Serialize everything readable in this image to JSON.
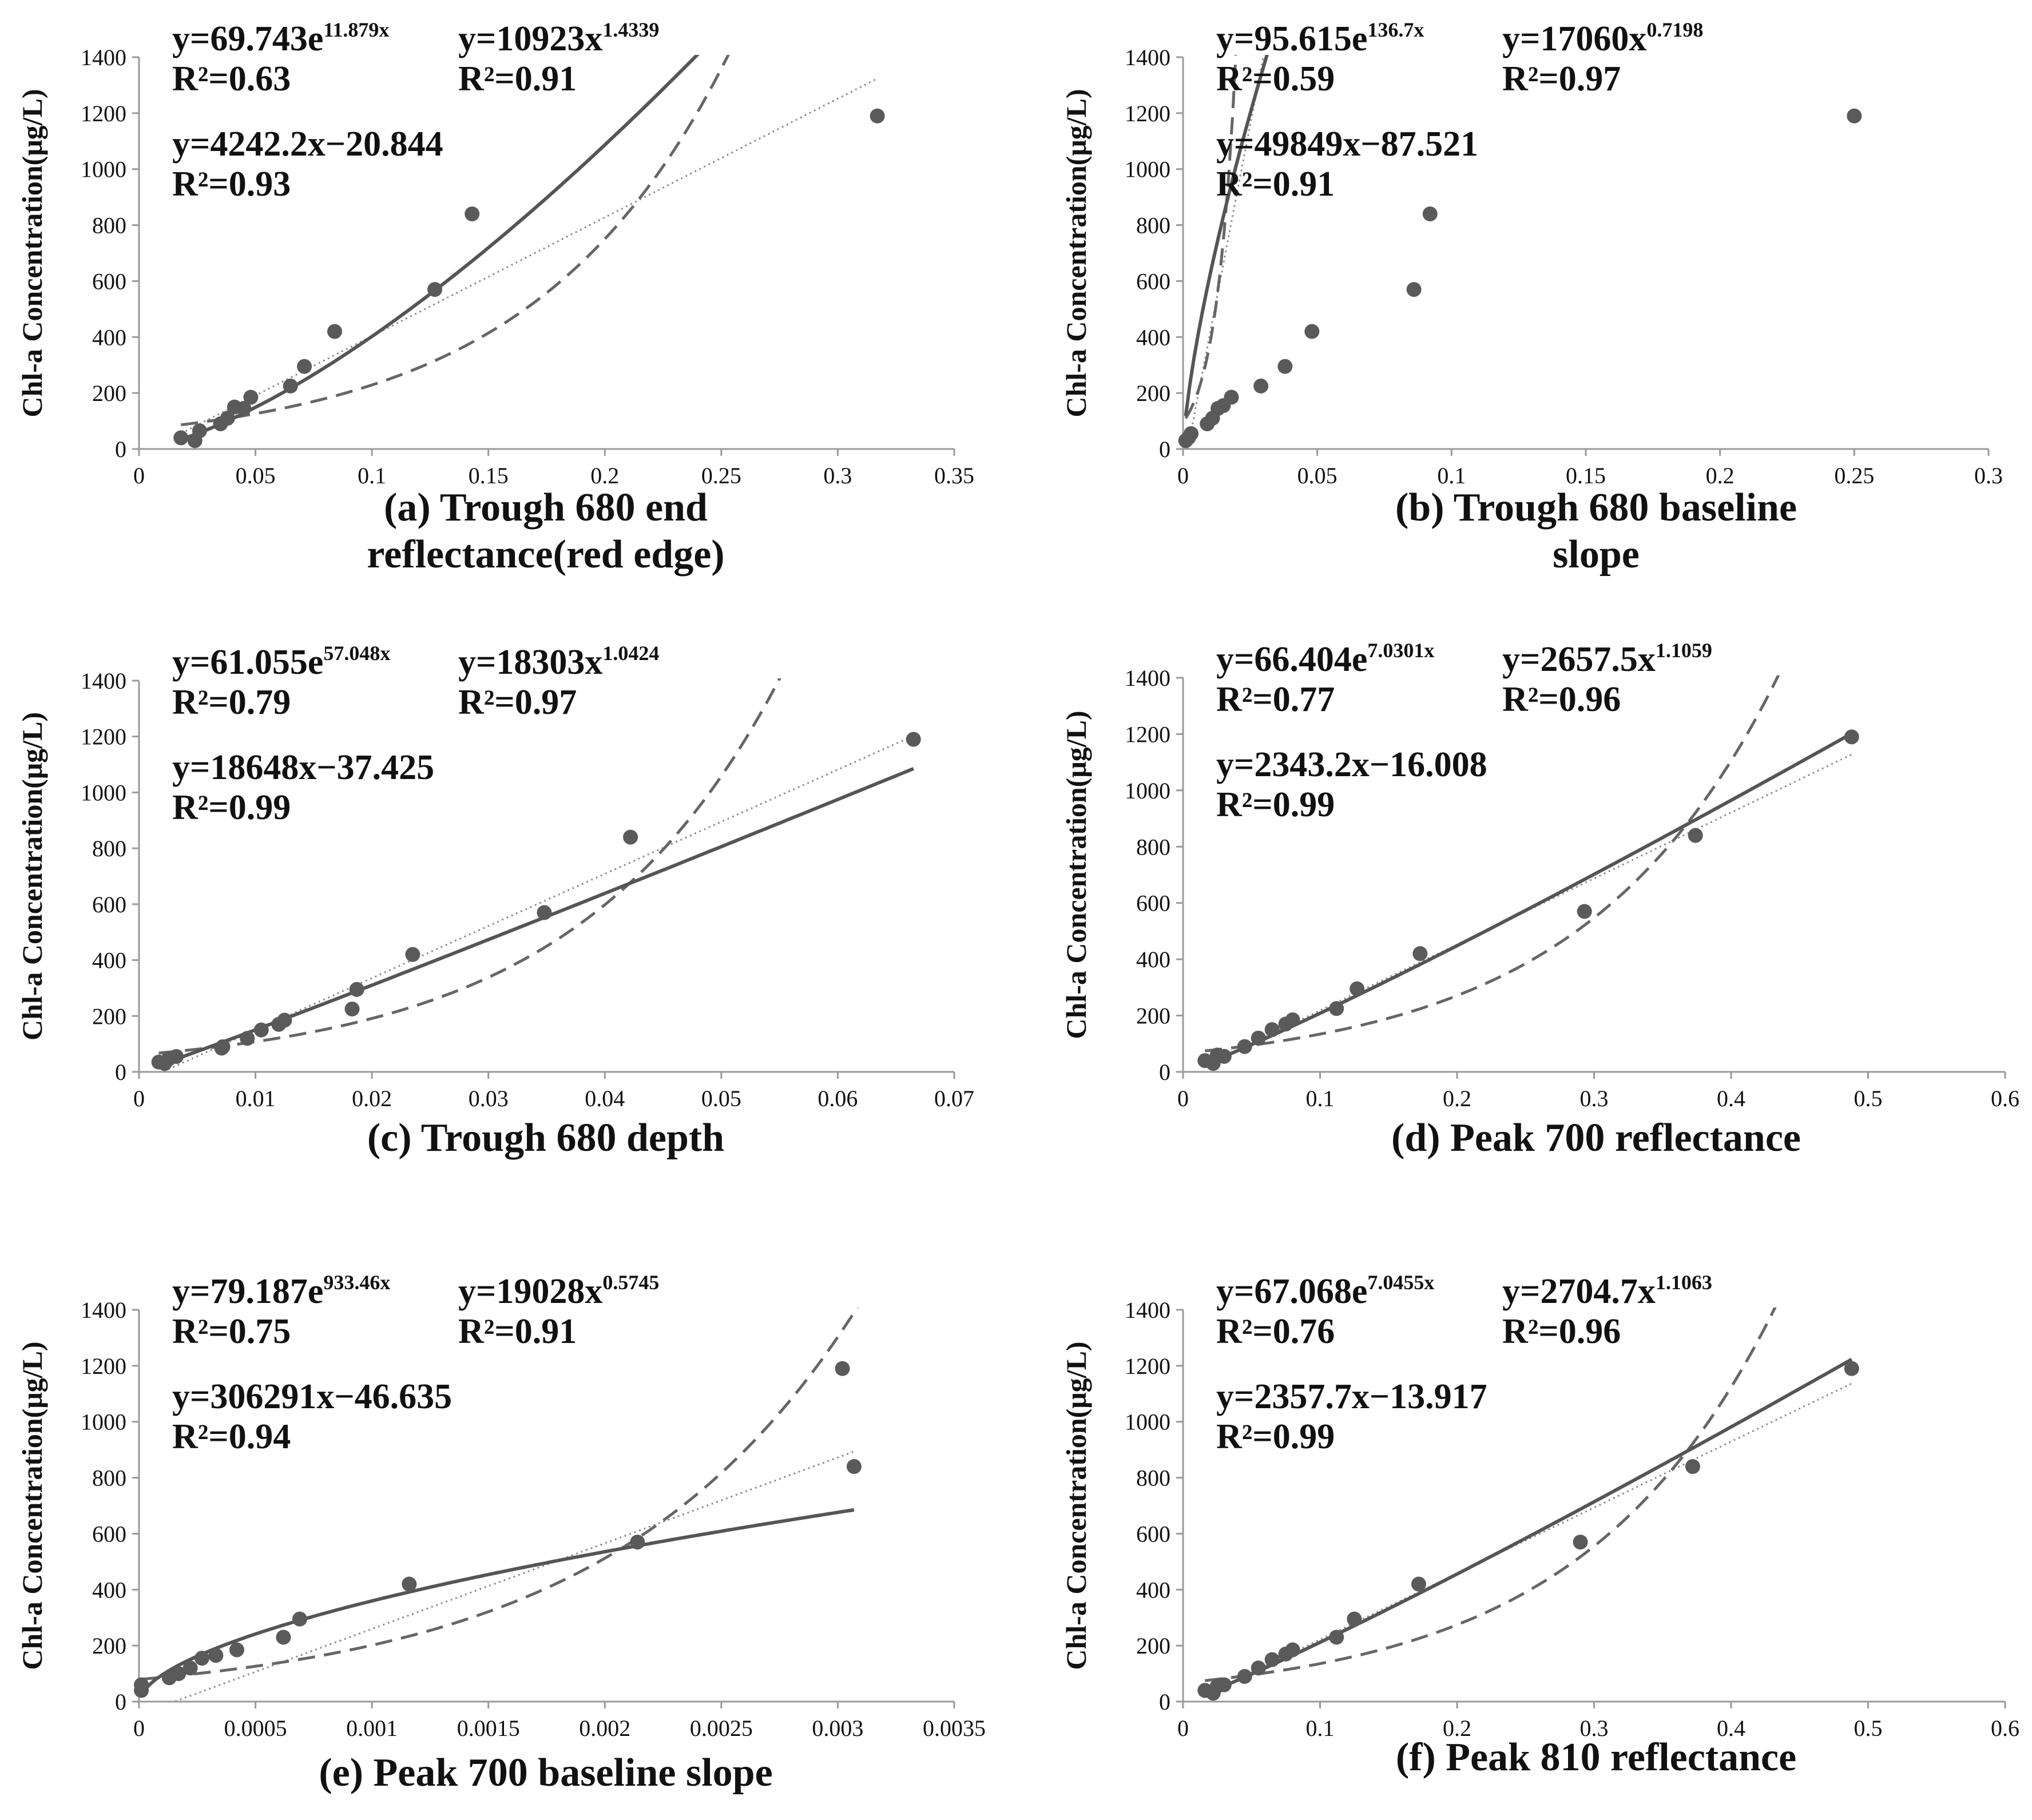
{
  "chart_data": [
    {
      "type": "scatter",
      "title": "(a) Trough 680 end reflectance(red edge)",
      "title_lines": [
        "(a) Trough 680 end",
        "reflectance(red edge)"
      ],
      "ylabel": "Chl-a Concentration(μg/L)",
      "xlim": [
        0,
        0.35
      ],
      "xticks": [
        0,
        0.05,
        0.1,
        0.15,
        0.2,
        0.25,
        0.3,
        0.35
      ],
      "xtick_labels": [
        "0",
        "0.05",
        "0.1",
        "0.15",
        "0.2",
        "0.25",
        "0.3",
        "0.35"
      ],
      "ylim": [
        0,
        1400
      ],
      "yticks": [
        0,
        200,
        400,
        600,
        800,
        1000,
        1200,
        1400
      ],
      "ytick_labels": [
        "0",
        "200",
        "400",
        "600",
        "800",
        "1000",
        "1200",
        "1400"
      ],
      "points": [
        [
          0.018,
          40
        ],
        [
          0.024,
          30
        ],
        [
          0.026,
          65
        ],
        [
          0.035,
          90
        ],
        [
          0.038,
          110
        ],
        [
          0.041,
          150
        ],
        [
          0.045,
          145
        ],
        [
          0.048,
          185
        ],
        [
          0.065,
          225
        ],
        [
          0.071,
          295
        ],
        [
          0.084,
          420
        ],
        [
          0.127,
          570
        ],
        [
          0.143,
          840
        ],
        [
          0.317,
          1190
        ]
      ],
      "fits": {
        "exponential": {
          "a": 69.743,
          "b": 11.879,
          "formula": "y=69.743e",
          "exponent": "11.879x",
          "r2": "R²=0.63"
        },
        "power": {
          "a": 10923,
          "b": 1.4339,
          "formula": "y=10923x",
          "exponent": "1.4339",
          "r2": "R²=0.91"
        },
        "linear": {
          "m": 4242.2,
          "c": -20.844,
          "formula": "y=4242.2x−20.844",
          "r2": "R²=0.93"
        }
      }
    },
    {
      "type": "scatter",
      "title": "(b) Trough 680 baseline slope",
      "title_lines": [
        "(b) Trough 680 baseline",
        "slope"
      ],
      "ylabel": "Chl-a Concentration(μg/L)",
      "xlim": [
        0,
        0.3
      ],
      "xticks": [
        0,
        0.05,
        0.1,
        0.15,
        0.2,
        0.25,
        0.3
      ],
      "xtick_labels": [
        "0",
        "0.05",
        "0.1",
        "0.15",
        "0.2",
        "0.25",
        "0.3"
      ],
      "ylim": [
        0,
        1400
      ],
      "yticks": [
        0,
        200,
        400,
        600,
        800,
        1000,
        1200,
        1400
      ],
      "ytick_labels": [
        "0",
        "200",
        "400",
        "600",
        "800",
        "1000",
        "1200",
        "1400"
      ],
      "points": [
        [
          0.001,
          30
        ],
        [
          0.002,
          40
        ],
        [
          0.003,
          55
        ],
        [
          0.009,
          90
        ],
        [
          0.011,
          110
        ],
        [
          0.013,
          145
        ],
        [
          0.015,
          155
        ],
        [
          0.018,
          185
        ],
        [
          0.029,
          225
        ],
        [
          0.038,
          295
        ],
        [
          0.048,
          420
        ],
        [
          0.086,
          570
        ],
        [
          0.092,
          840
        ],
        [
          0.25,
          1190
        ]
      ],
      "fits": {
        "exponential": {
          "a": 95.615,
          "b": 136.7,
          "formula": "y=95.615e",
          "exponent": "136.7x",
          "r2": "R²=0.59"
        },
        "power": {
          "a": 17060,
          "b": 0.7198,
          "formula": "y=17060x",
          "exponent": "0.7198",
          "r2": "R²=0.97"
        },
        "linear": {
          "m": 49849,
          "c": -87.521,
          "formula": "y=49849x−87.521",
          "r2": "R²=0.91"
        }
      }
    },
    {
      "type": "scatter",
      "title": "(c) Trough 680 depth",
      "title_lines": [
        "(c) Trough 680 depth"
      ],
      "ylabel": "Chl-a Concentration(μg/L)",
      "xlim": [
        0,
        0.07
      ],
      "xticks": [
        0,
        0.01,
        0.02,
        0.03,
        0.04,
        0.05,
        0.06,
        0.07
      ],
      "xtick_labels": [
        "0",
        "0.01",
        "0.02",
        "0.03",
        "0.04",
        "0.05",
        "0.06",
        "0.07"
      ],
      "ylim": [
        0,
        1400
      ],
      "yticks": [
        0,
        200,
        400,
        600,
        800,
        1000,
        1200,
        1400
      ],
      "ytick_labels": [
        "0",
        "200",
        "400",
        "600",
        "800",
        "1000",
        "1200",
        "1400"
      ],
      "points": [
        [
          0.0017,
          35
        ],
        [
          0.0022,
          30
        ],
        [
          0.0025,
          45
        ],
        [
          0.0032,
          55
        ],
        [
          0.0071,
          85
        ],
        [
          0.0072,
          90
        ],
        [
          0.0093,
          120
        ],
        [
          0.0105,
          150
        ],
        [
          0.012,
          170
        ],
        [
          0.0125,
          185
        ],
        [
          0.0183,
          225
        ],
        [
          0.0187,
          295
        ],
        [
          0.0235,
          420
        ],
        [
          0.0348,
          570
        ],
        [
          0.0422,
          840
        ],
        [
          0.0665,
          1190
        ]
      ],
      "fits": {
        "exponential": {
          "a": 61.055,
          "b": 57.048,
          "formula": "y=61.055e",
          "exponent": "57.048x",
          "r2": "R²=0.79"
        },
        "power": {
          "a": 18303,
          "b": 1.0424,
          "formula": "y=18303x",
          "exponent": "1.0424",
          "r2": "R²=0.97"
        },
        "linear": {
          "m": 18648,
          "c": -37.425,
          "formula": "y=18648x−37.425",
          "r2": "R²=0.99"
        }
      }
    },
    {
      "type": "scatter",
      "title": "(d) Peak 700 reflectance",
      "title_lines": [
        "(d) Peak 700 reflectance"
      ],
      "ylabel": "Chl-a Concentration(μg/L)",
      "xlim": [
        0,
        0.6
      ],
      "xticks": [
        0,
        0.1,
        0.2,
        0.3,
        0.4,
        0.5,
        0.6
      ],
      "xtick_labels": [
        "0",
        "0.1",
        "0.2",
        "0.3",
        "0.4",
        "0.5",
        "0.6"
      ],
      "ylim": [
        0,
        1400
      ],
      "yticks": [
        0,
        200,
        400,
        600,
        800,
        1000,
        1200,
        1400
      ],
      "ytick_labels": [
        "0",
        "200",
        "400",
        "600",
        "800",
        "1000",
        "1200",
        "1400"
      ],
      "points": [
        [
          0.016,
          40
        ],
        [
          0.022,
          30
        ],
        [
          0.025,
          60
        ],
        [
          0.03,
          55
        ],
        [
          0.045,
          90
        ],
        [
          0.055,
          120
        ],
        [
          0.065,
          150
        ],
        [
          0.075,
          170
        ],
        [
          0.08,
          185
        ],
        [
          0.112,
          225
        ],
        [
          0.127,
          295
        ],
        [
          0.173,
          420
        ],
        [
          0.293,
          570
        ],
        [
          0.374,
          840
        ],
        [
          0.488,
          1190
        ]
      ],
      "fits": {
        "exponential": {
          "a": 66.404,
          "b": 7.0301,
          "formula": "y=66.404e",
          "exponent": "7.0301x",
          "r2": "R²=0.77"
        },
        "power": {
          "a": 2657.5,
          "b": 1.1059,
          "formula": "y=2657.5x",
          "exponent": "1.1059",
          "r2": "R²=0.96"
        },
        "linear": {
          "m": 2343.2,
          "c": -16.008,
          "formula": "y=2343.2x−16.008",
          "r2": "R²=0.99"
        }
      }
    },
    {
      "type": "scatter",
      "title": "(e) Peak 700 baseline slope",
      "title_lines": [
        "(e) Peak 700 baseline slope"
      ],
      "ylabel": "Chl-a Concentration(μg/L)",
      "xlim": [
        0,
        0.0035
      ],
      "xticks": [
        0,
        0.0005,
        0.001,
        0.0015,
        0.002,
        0.0025,
        0.003,
        0.0035
      ],
      "xtick_labels": [
        "0",
        "0.0005",
        "0.001",
        "0.0015",
        "0.002",
        "0.0025",
        "0.003",
        "0.0035"
      ],
      "ylim": [
        0,
        1400
      ],
      "yticks": [
        0,
        200,
        400,
        600,
        800,
        1000,
        1200,
        1400
      ],
      "ytick_labels": [
        "0",
        "200",
        "400",
        "600",
        "800",
        "1000",
        "1200",
        "1400"
      ],
      "points": [
        [
          1e-05,
          40
        ],
        [
          1e-05,
          60
        ],
        [
          0.00013,
          85
        ],
        [
          0.00017,
          100
        ],
        [
          0.00022,
          120
        ],
        [
          0.00027,
          155
        ],
        [
          0.00033,
          165
        ],
        [
          0.00042,
          185
        ],
        [
          0.00062,
          230
        ],
        [
          0.00069,
          295
        ],
        [
          0.00116,
          420
        ],
        [
          0.00214,
          570
        ],
        [
          0.00302,
          1190
        ],
        [
          0.00307,
          840
        ]
      ],
      "fits": {
        "exponential": {
          "a": 79.187,
          "b": 933.46,
          "formula": "y=79.187e",
          "exponent": "933.46x",
          "r2": "R²=0.75"
        },
        "power": {
          "a": 19028,
          "b": 0.5745,
          "formula": "y=19028x",
          "exponent": "0.5745",
          "r2": "R²=0.91"
        },
        "linear": {
          "m": 306291,
          "c": -46.635,
          "formula": "y=306291x−46.635",
          "r2": "R²=0.94"
        }
      }
    },
    {
      "type": "scatter",
      "title": "(f) Peak 810 reflectance",
      "title_lines": [
        "(f) Peak 810 reflectance"
      ],
      "ylabel": "Chl-a Concentration(μg/L)",
      "xlim": [
        0,
        0.6
      ],
      "xticks": [
        0,
        0.1,
        0.2,
        0.3,
        0.4,
        0.5,
        0.6
      ],
      "xtick_labels": [
        "0",
        "0.1",
        "0.2",
        "0.3",
        "0.4",
        "0.5",
        "0.6"
      ],
      "ylim": [
        0,
        1400
      ],
      "yticks": [
        0,
        200,
        400,
        600,
        800,
        1000,
        1200,
        1400
      ],
      "ytick_labels": [
        "0",
        "200",
        "400",
        "600",
        "800",
        "1000",
        "1200",
        "1400"
      ],
      "points": [
        [
          0.016,
          40
        ],
        [
          0.022,
          30
        ],
        [
          0.025,
          55
        ],
        [
          0.03,
          60
        ],
        [
          0.045,
          90
        ],
        [
          0.055,
          120
        ],
        [
          0.065,
          150
        ],
        [
          0.075,
          170
        ],
        [
          0.08,
          185
        ],
        [
          0.112,
          230
        ],
        [
          0.125,
          295
        ],
        [
          0.172,
          420
        ],
        [
          0.29,
          570
        ],
        [
          0.372,
          840
        ],
        [
          0.488,
          1190
        ]
      ],
      "fits": {
        "exponential": {
          "a": 67.068,
          "b": 7.0455,
          "formula": "y=67.068e",
          "exponent": "7.0455x",
          "r2": "R²=0.76"
        },
        "power": {
          "a": 2704.7,
          "b": 1.1063,
          "formula": "y=2704.7x",
          "exponent": "1.1063",
          "r2": "R²=0.96"
        },
        "linear": {
          "m": 2357.7,
          "c": -13.917,
          "formula": "y=2357.7x−13.917",
          "r2": "R²=0.99"
        }
      }
    }
  ],
  "colors": {
    "marker": "#5a5a5a",
    "linear_line": "#8c8c8c",
    "power_line": "#555555",
    "exponential_line": "#666666",
    "axis": "#9a9a9a",
    "text": "#111111"
  }
}
